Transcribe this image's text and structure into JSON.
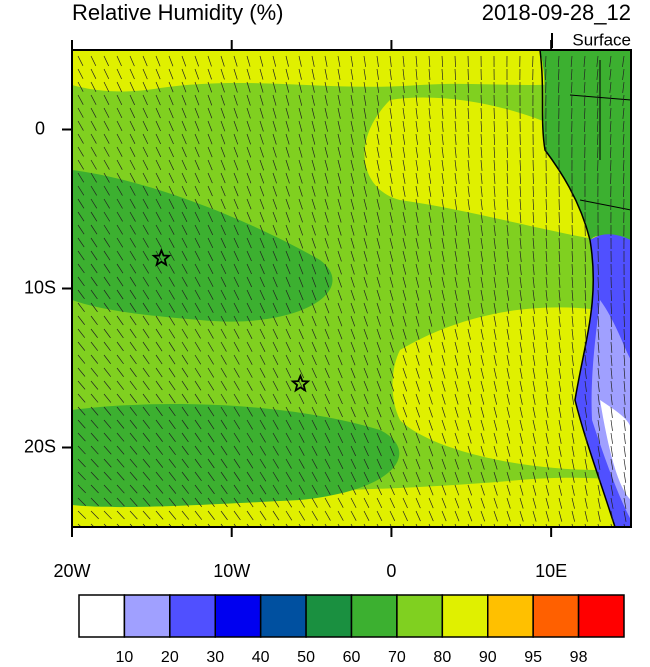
{
  "header": {
    "title": "Relative Humidity (%)",
    "date": "2018-09-28_12",
    "level": "Surface"
  },
  "map": {
    "lon_range": [
      -20,
      15
    ],
    "lat_range": [
      -25,
      5
    ],
    "lon_ticks": [
      {
        "value": -20,
        "label": "20W"
      },
      {
        "value": -10,
        "label": "10W"
      },
      0,
      {
        "value": 10,
        "label": "10E"
      }
    ],
    "lat_ticks": [
      0,
      {
        "value": -10,
        "label": "10S"
      },
      {
        "value": -20,
        "label": "20S"
      }
    ],
    "markers": [
      {
        "lon": -14.4,
        "lat": -8.1
      },
      {
        "lon": -5.7,
        "lat": -16.0
      }
    ]
  },
  "colorbar": {
    "levels": [
      10,
      20,
      30,
      40,
      50,
      60,
      70,
      80,
      90,
      95,
      98
    ],
    "colors": [
      "#ffffff",
      "#a0a0ff",
      "#5050ff",
      "#0000f0",
      "#0050a0",
      "#1a9040",
      "#3cb030",
      "#80d020",
      "#e0f000",
      "#ffc000",
      "#ff6000",
      "#ff0000"
    ]
  }
}
